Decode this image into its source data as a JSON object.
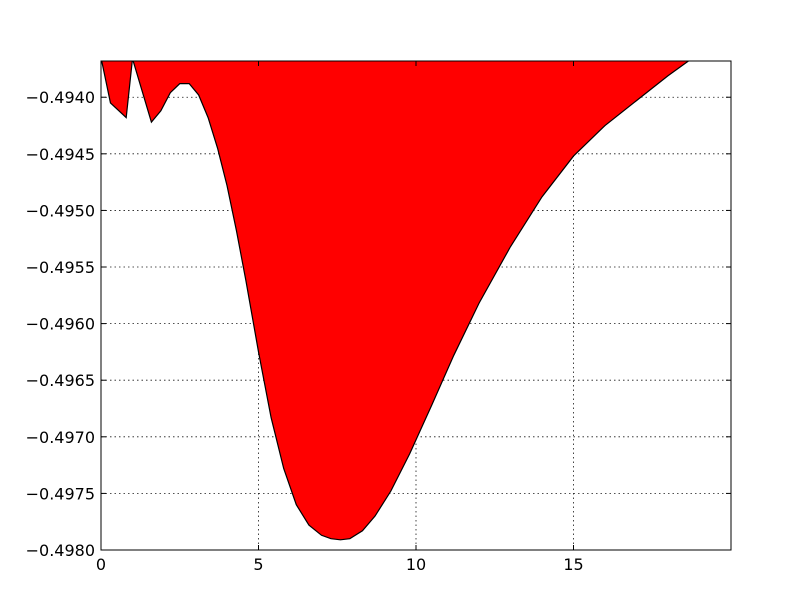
{
  "chart_data": {
    "type": "area",
    "title": "",
    "xlabel": "",
    "ylabel": "",
    "xlim": [
      0,
      20
    ],
    "ylim": [
      -0.498,
      -0.49368
    ],
    "fill_color": "#ff0000",
    "line_color": "#000000",
    "grid": true,
    "x_ticks": [
      0,
      5,
      10,
      15
    ],
    "x_tick_labels": [
      "0",
      "5",
      "10",
      "15"
    ],
    "y_ticks": [
      -0.494,
      -0.4945,
      -0.495,
      -0.4955,
      -0.496,
      -0.4965,
      -0.497,
      -0.4975,
      -0.498
    ],
    "y_tick_labels": [
      "−0.4940",
      "−0.4945",
      "−0.4950",
      "−0.4955",
      "−0.4960",
      "−0.4965",
      "−0.4970",
      "−0.4975",
      "−0.4980"
    ],
    "series": [
      {
        "x": [
          0.0,
          0.3,
          0.8,
          1.0,
          1.3,
          1.6,
          1.9,
          2.2,
          2.5,
          2.8,
          3.1,
          3.4,
          3.7,
          4.0,
          4.3,
          4.6,
          5.0,
          5.4,
          5.8,
          6.2,
          6.6,
          7.0,
          7.3,
          7.6,
          7.9,
          8.3,
          8.7,
          9.2,
          9.8,
          10.5,
          11.2,
          12.0,
          13.0,
          14.0,
          15.0,
          16.0,
          17.0,
          18.0,
          19.0,
          20.0
        ],
        "y": [
          -0.49365,
          -0.49405,
          -0.49418,
          -0.49366,
          -0.49394,
          -0.49422,
          -0.49412,
          -0.49396,
          -0.49388,
          -0.49388,
          -0.49398,
          -0.49418,
          -0.49445,
          -0.49478,
          -0.49518,
          -0.49562,
          -0.49625,
          -0.49683,
          -0.49728,
          -0.4976,
          -0.49778,
          -0.49787,
          -0.4979,
          -0.49791,
          -0.4979,
          -0.49783,
          -0.4977,
          -0.49748,
          -0.49715,
          -0.49672,
          -0.49628,
          -0.49582,
          -0.49532,
          -0.49488,
          -0.49452,
          -0.49425,
          -0.49403,
          -0.49381,
          -0.49361,
          -0.49343
        ]
      }
    ]
  }
}
